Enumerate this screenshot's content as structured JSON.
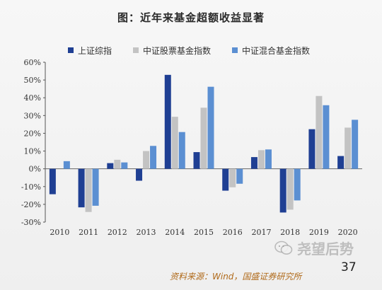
{
  "title": "图：近年来基金超额收益显著",
  "source": "资料来源：Wind，国盛证券研究所",
  "page_number": "37",
  "watermark_text": "尧望后势",
  "chart_data": {
    "type": "bar",
    "categories": [
      "2010",
      "2011",
      "2012",
      "2013",
      "2014",
      "2015",
      "2016",
      "2017",
      "2018",
      "2019",
      "2020"
    ],
    "series": [
      {
        "name": "上证综指",
        "color": "#1f3f93",
        "values": [
          -14.3,
          -21.7,
          3.2,
          -6.7,
          52.9,
          9.4,
          -12.3,
          6.6,
          -24.6,
          22.3,
          7.2
        ]
      },
      {
        "name": "中证股票基金指数",
        "color": "#c3c3c3",
        "values": [
          0,
          -24.3,
          5.1,
          10.0,
          29.3,
          34.4,
          -10.4,
          10.5,
          -23.0,
          41.0,
          23.2
        ]
      },
      {
        "name": "中证混合基金指数",
        "color": "#5b8fd2",
        "values": [
          4.3,
          -20.8,
          3.6,
          12.9,
          20.7,
          46.2,
          -8.4,
          10.9,
          -17.8,
          35.8,
          27.6
        ]
      }
    ],
    "ylim": [
      -30,
      60
    ],
    "yticks": [
      "60%",
      "50%",
      "40%",
      "30%",
      "20%",
      "10%",
      "0%",
      "-10%",
      "-20%",
      "-30%"
    ],
    "legend_position": "top",
    "grid": false
  }
}
